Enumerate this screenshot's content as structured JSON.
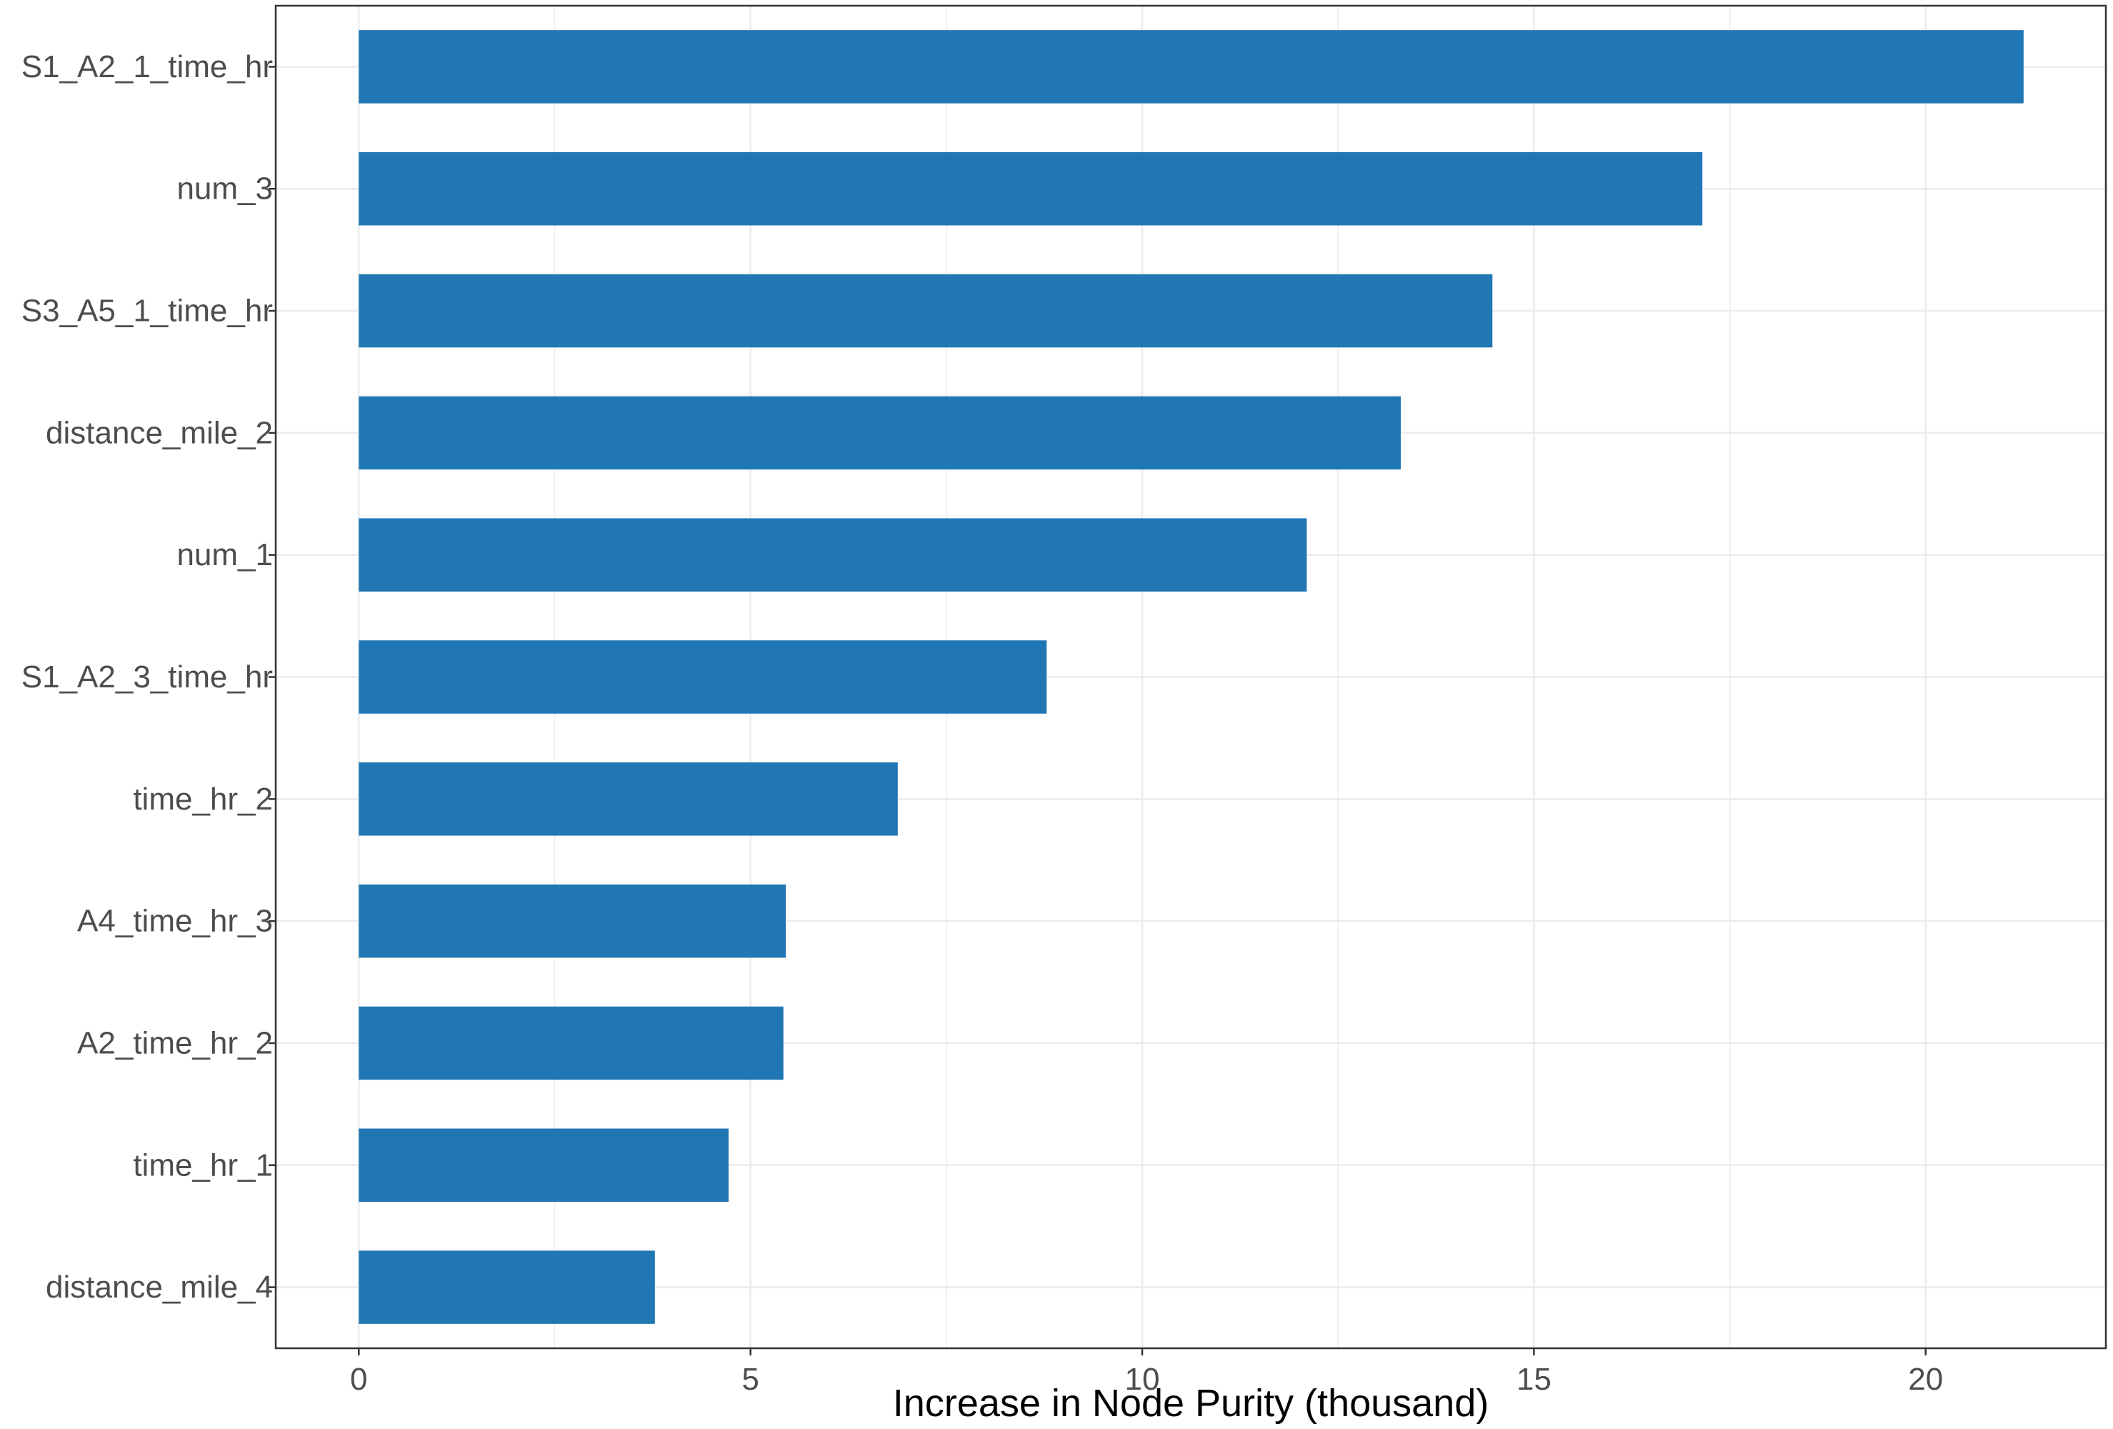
{
  "chart_data": {
    "type": "bar",
    "orientation": "horizontal",
    "title": "",
    "xlabel": "Increase in Node Purity (thousand)",
    "ylabel": "",
    "categories": [
      "S1_A2_1_time_hr",
      "num_3",
      "S3_A5_1_time_hr",
      "distance_mile_2",
      "num_1",
      "S1_A2_3_time_hr",
      "time_hr_2",
      "A4_time_hr_3",
      "A2_time_hr_2",
      "time_hr_1",
      "distance_mile_4"
    ],
    "values": [
      21.25,
      17.15,
      14.47,
      13.3,
      12.1,
      8.78,
      6.88,
      5.45,
      5.42,
      4.72,
      3.78
    ],
    "xlim": [
      -1.06,
      22.3
    ],
    "xticks": [
      0,
      5,
      10,
      15,
      20
    ],
    "xtick_labels": [
      "0",
      "5",
      "10",
      "15",
      "20"
    ],
    "grid": true,
    "legend": "none",
    "colors": {
      "bar": "#2077b4",
      "grid": "#ebebeb",
      "panel_border": "#333333",
      "tick_text": "#4d4d4d",
      "title_text": "#000000"
    }
  }
}
